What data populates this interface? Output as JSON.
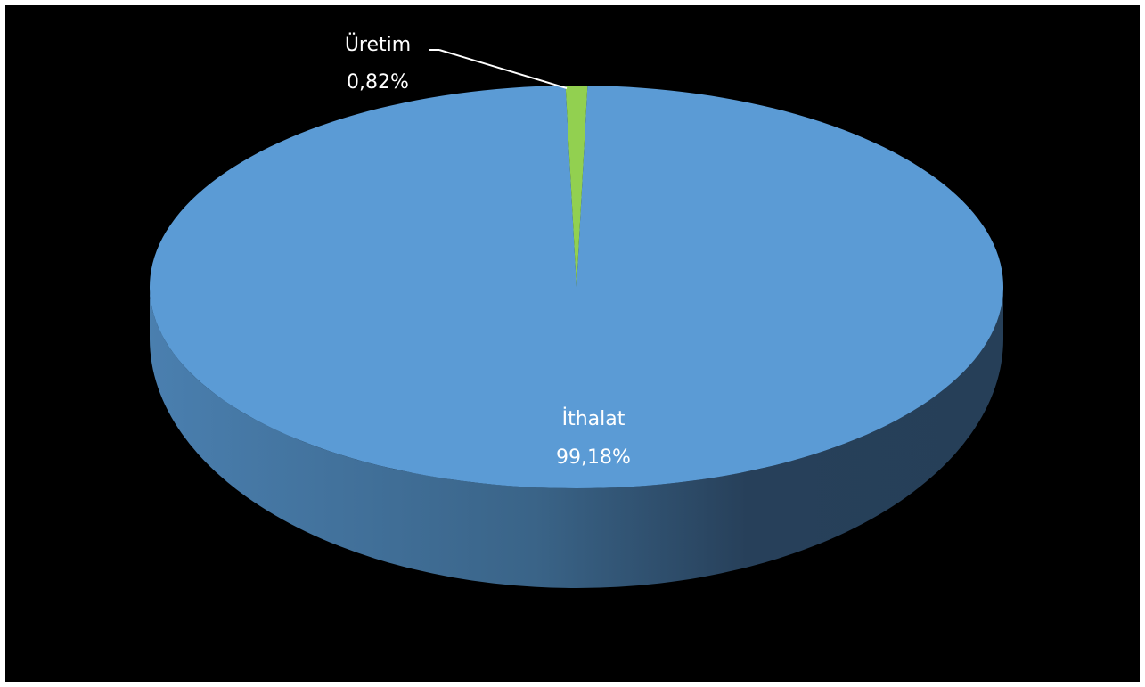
{
  "chart_data": {
    "type": "pie",
    "style": "3d",
    "categories": [
      "İthalat",
      "Üretim"
    ],
    "values": [
      99.18,
      0.82
    ],
    "labels": [
      "99,18%",
      "0,82%"
    ],
    "colors": [
      "#5B9BD5",
      "#92D050"
    ],
    "background": "#000000",
    "title": "",
    "legend": "none"
  }
}
